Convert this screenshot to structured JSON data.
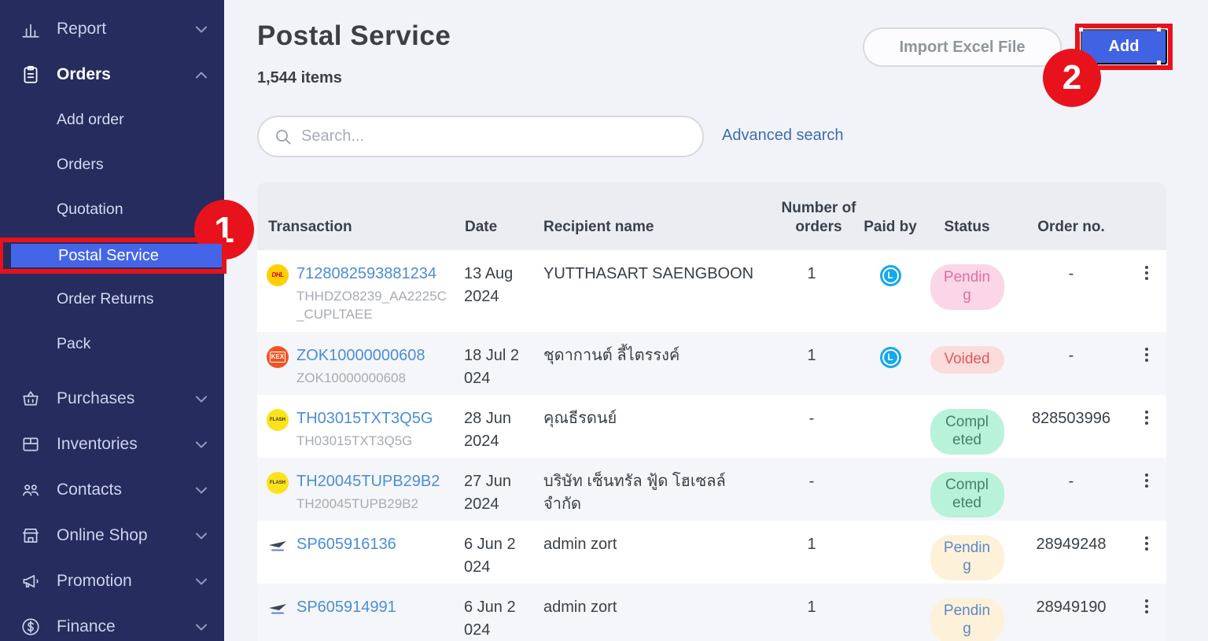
{
  "sidebar": {
    "items": [
      {
        "label": "Report",
        "type": "top",
        "icon": "bar-chart-icon",
        "chevron": "down"
      },
      {
        "label": "Orders",
        "type": "top",
        "icon": "clipboard-icon",
        "chevron": "up",
        "active": true
      },
      {
        "label": "Add order",
        "type": "sub"
      },
      {
        "label": "Orders",
        "type": "sub"
      },
      {
        "label": "Quotation",
        "type": "sub"
      },
      {
        "label": "Postal Service",
        "type": "sub",
        "selected": true
      },
      {
        "label": "Order Returns",
        "type": "sub"
      },
      {
        "label": "Pack",
        "type": "sub"
      },
      {
        "label": "Purchases",
        "type": "top",
        "icon": "basket-icon",
        "chevron": "down",
        "gap": true
      },
      {
        "label": "Inventories",
        "type": "top",
        "icon": "box-icon",
        "chevron": "down"
      },
      {
        "label": "Contacts",
        "type": "top",
        "icon": "people-icon",
        "chevron": "down"
      },
      {
        "label": "Online Shop",
        "type": "top",
        "icon": "storefront-icon",
        "chevron": "down"
      },
      {
        "label": "Promotion",
        "type": "top",
        "icon": "megaphone-icon",
        "chevron": "down"
      },
      {
        "label": "Finance",
        "type": "top",
        "icon": "dollar-icon",
        "chevron": "down"
      }
    ]
  },
  "header": {
    "title": "Postal Service",
    "item_count": "1,544 items",
    "import_button": "Import Excel File",
    "add_button": "Add"
  },
  "search": {
    "placeholder": "Search...",
    "advanced_label": "Advanced search"
  },
  "annotations": {
    "step1": "1",
    "step2": "2"
  },
  "carrier_logos": {
    "dhl": "DHL",
    "kex": "KEX",
    "flash": "FLASH",
    "sp": ""
  },
  "paid_by_icon_letter": "L",
  "table": {
    "columns": {
      "transaction": "Transaction",
      "date": "Date",
      "recipient": "Recipient name",
      "orders": "Number of orders",
      "paid_by": "Paid by",
      "status": "Status",
      "order_no": "Order no."
    },
    "rows": [
      {
        "carrier": "dhl",
        "tracking": "7128082593881234",
        "subtext": "THHDZO8239_AA2225C_CUPLTAEE",
        "date": "13 Aug 2024",
        "recipient": "YUTTHASART SAENGBOON",
        "orders": "1",
        "paid_by": "L",
        "status": "Pending",
        "status_style": "pink",
        "order_no": "-"
      },
      {
        "carrier": "kex",
        "tracking": "ZOK10000000608",
        "subtext": "ZOK10000000608",
        "date": "18 Jul 2024",
        "recipient": "ชุดากานต์ ลี้ไตรรงค์",
        "orders": "1",
        "paid_by": "L",
        "status": "Voided",
        "status_style": "red",
        "order_no": "-"
      },
      {
        "carrier": "flash",
        "tracking": "TH03015TXT3Q5G",
        "subtext": "TH03015TXT3Q5G",
        "date": "28 Jun 2024",
        "recipient": "คุณธีรดนย์",
        "orders": "-",
        "paid_by": "",
        "status": "Completed",
        "status_style": "green",
        "order_no": "828503996"
      },
      {
        "carrier": "flash",
        "tracking": "TH20045TUPB29B2",
        "subtext": "TH20045TUPB29B2",
        "date": "27 Jun 2024",
        "recipient": "บริษัท เซ็นทรัล ฟู้ด โฮเซลล์ จำกัด",
        "orders": "-",
        "paid_by": "",
        "status": "Completed",
        "status_style": "green",
        "order_no": "-"
      },
      {
        "carrier": "sp",
        "tracking": "SP605916136",
        "subtext": "",
        "date": "6 Jun 2024",
        "recipient": "admin zort",
        "orders": "1",
        "paid_by": "",
        "status": "Pending",
        "status_style": "yellow",
        "order_no": "28949248"
      },
      {
        "carrier": "sp",
        "tracking": "SP605914991",
        "subtext": "",
        "date": "6 Jun 2024",
        "recipient": "admin zort",
        "orders": "1",
        "paid_by": "",
        "status": "Pending",
        "status_style": "yellow",
        "order_no": "28949190"
      }
    ]
  }
}
